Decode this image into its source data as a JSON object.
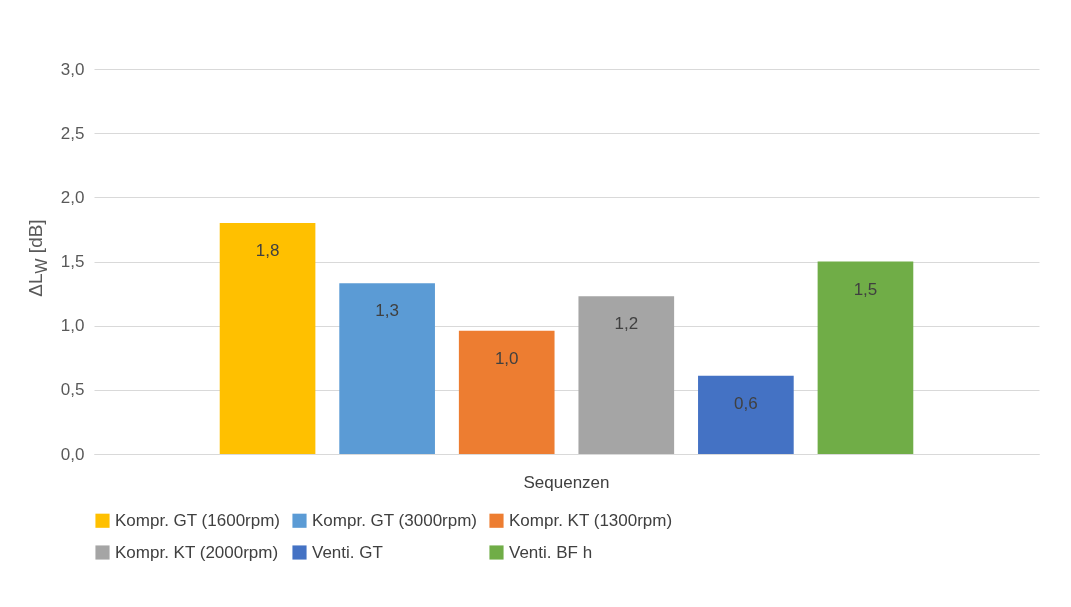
{
  "chart_data": {
    "type": "bar",
    "ylabel": "ΔL$_{W}$ [dB]",
    "categories": [
      "Sequenzen"
    ],
    "series": [
      {
        "name": "Kompr. GT (1600rpm)",
        "color": "#ffc000",
        "values": [
          1.8
        ],
        "value_labels": [
          "1,8"
        ]
      },
      {
        "name": "Kompr. GT (3000rpm)",
        "color": "#5b9bd5",
        "values": [
          1.33
        ],
        "value_labels": [
          "1,3"
        ]
      },
      {
        "name": "Kompr. KT (1300rpm)",
        "color": "#ed7d31",
        "values": [
          0.96
        ],
        "value_labels": [
          "1,0"
        ]
      },
      {
        "name": "Kompr. KT (2000rpm)",
        "color": "#a5a5a5",
        "values": [
          1.23
        ],
        "value_labels": [
          "1,2"
        ]
      },
      {
        "name": "Venti. GT",
        "color": "#4472c4",
        "values": [
          0.61
        ],
        "value_labels": [
          "0,6"
        ]
      },
      {
        "name": "Venti. BF h",
        "color": "#70ad47",
        "values": [
          1.5
        ],
        "value_labels": [
          "1,5"
        ]
      }
    ],
    "ylim": [
      0,
      3.0
    ],
    "yticks": [
      {
        "value": 0,
        "label": "0,0"
      },
      {
        "value": 0.5,
        "label": "0,5"
      },
      {
        "value": 1,
        "label": "1,0"
      },
      {
        "value": 1.5,
        "label": "1,5"
      },
      {
        "value": 2,
        "label": "2,0"
      },
      {
        "value": 2.5,
        "label": "2,5"
      },
      {
        "value": 3,
        "label": "3,0"
      }
    ],
    "grid": "y",
    "legend": "bottom"
  }
}
